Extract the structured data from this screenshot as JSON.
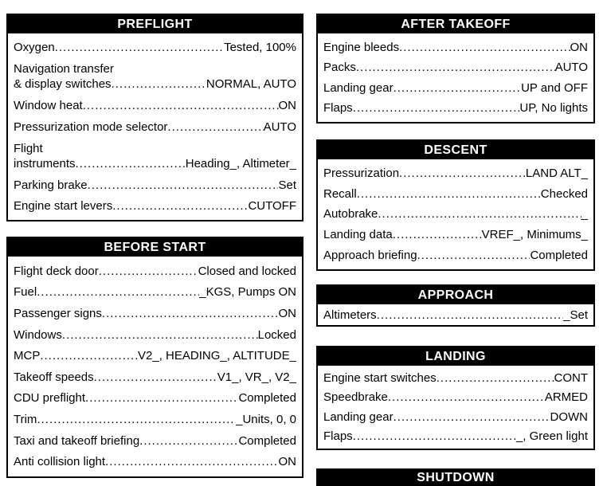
{
  "colors": {
    "header_bg": "#000000",
    "header_text": "#ffffff",
    "body_bg": "#ffffff",
    "text": "#000000",
    "border": "#000000"
  },
  "sections": {
    "preflight": {
      "title": "PREFLIGHT",
      "items": [
        {
          "label": "Oxygen",
          "value": "Tested, 100%"
        },
        {
          "label_top": "Navigation transfer",
          "label": "& display switches",
          "value": "NORMAL, AUTO"
        },
        {
          "label": "Window heat",
          "value": "ON"
        },
        {
          "label": "Pressurization mode selector",
          "value": "AUTO"
        },
        {
          "label_top": "Flight",
          "label": "instruments",
          "value": "Heading_, Altimeter_"
        },
        {
          "label": "Parking brake",
          "value": "Set"
        },
        {
          "label": "Engine start levers",
          "value": "CUTOFF"
        }
      ]
    },
    "before_start": {
      "title": "BEFORE START",
      "items": [
        {
          "label": "Flight deck door",
          "value": "Closed and locked"
        },
        {
          "label": "Fuel",
          "value": "_KGS, Pumps ON"
        },
        {
          "label": "Passenger signs",
          "value": "ON"
        },
        {
          "label": "Windows",
          "value": "Locked"
        },
        {
          "label": "MCP",
          "value": "V2_, HEADING_, ALTITUDE_"
        },
        {
          "label": "Takeoff speeds",
          "value": "V1_, VR_, V2_"
        },
        {
          "label": "CDU preflight",
          "value": "Completed"
        },
        {
          "label": "Trim",
          "value": "_Units, 0, 0"
        },
        {
          "label": "Taxi and takeoff briefing",
          "value": "Completed"
        },
        {
          "label": "Anti collision light",
          "value": "ON"
        }
      ]
    },
    "after_takeoff": {
      "title": "AFTER TAKEOFF",
      "items": [
        {
          "label": "Engine bleeds",
          "value": "ON"
        },
        {
          "label": "Packs",
          "value": "AUTO"
        },
        {
          "label": "Landing gear",
          "value": "UP and OFF"
        },
        {
          "label": "Flaps",
          "value": "UP, No lights"
        }
      ]
    },
    "descent": {
      "title": "DESCENT",
      "items": [
        {
          "label": "Pressurization",
          "value": "LAND ALT_"
        },
        {
          "label": "Recall",
          "value": "Checked"
        },
        {
          "label": "Autobrake",
          "value": "_"
        },
        {
          "label": "Landing data",
          "value": "VREF_, Minimums_"
        },
        {
          "label": "Approach briefing",
          "value": "Completed"
        }
      ]
    },
    "approach": {
      "title": "APPROACH",
      "items": [
        {
          "label": "Altimeters",
          "value": "_Set"
        }
      ]
    },
    "landing": {
      "title": "LANDING",
      "items": [
        {
          "label": "Engine start switches",
          "value": "CONT"
        },
        {
          "label": "Speedbrake",
          "value": "ARMED"
        },
        {
          "label": "Landing gear",
          "value": "DOWN"
        },
        {
          "label": "Flaps",
          "value": "_, Green light"
        }
      ]
    },
    "shutdown": {
      "title": "SHUTDOWN",
      "items": []
    }
  }
}
